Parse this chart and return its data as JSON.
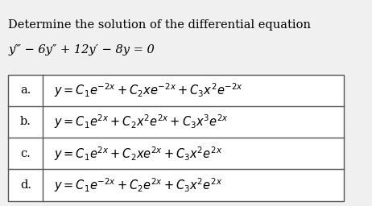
{
  "title_line1": "Determine the solution of the differential equation",
  "title_line2": "y‴ − 6y″ + 12y′ − 8y = 0",
  "rows": [
    {
      "label": "a.",
      "formula": "$y = C_1e^{-2x} + C_2xe^{-2x} + C_3x^2e^{-2x}$"
    },
    {
      "label": "b.",
      "formula": "$y = C_1e^{2x} + C_2x^2e^{2x} + C_3x^3e^{2x}$"
    },
    {
      "label": "c.",
      "formula": "$y = C_1e^{2x} + C_2xe^{2x} + C_3x^2e^{2x}$"
    },
    {
      "label": "d.",
      "formula": "$y = C_1e^{-2x} + C_2e^{2x} + C_3x^2e^{2x}$"
    }
  ],
  "bg_color": "#f0f0f0",
  "table_bg": "#ffffff",
  "text_color": "#000000",
  "title_fontsize": 10.5,
  "row_fontsize": 10.5
}
